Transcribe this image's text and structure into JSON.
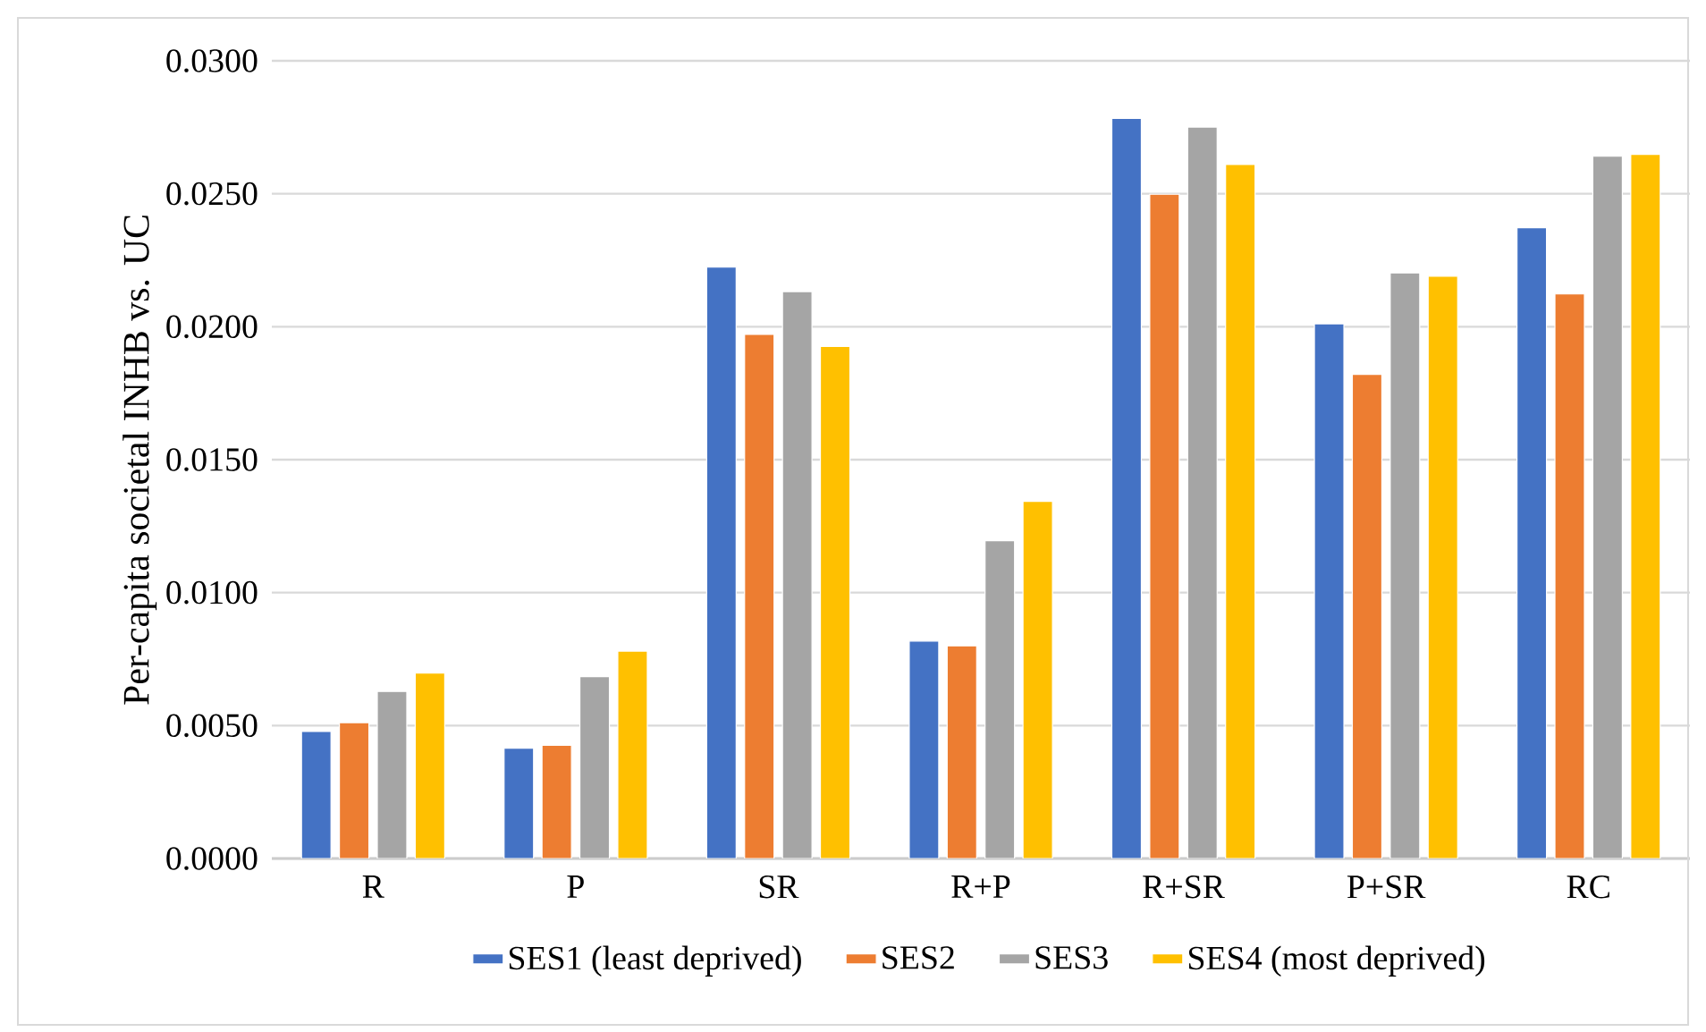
{
  "chart_data": {
    "type": "bar",
    "ylabel": "Per-capita societal INHB vs. UC",
    "categories": [
      "R",
      "P",
      "SR",
      "R+P",
      "R+SR",
      "P+SR",
      "RC"
    ],
    "series": [
      {
        "name": "SES1 (least deprived)",
        "color": "#4472c4",
        "values": [
          0.00478,
          0.00415,
          0.02224,
          0.00818,
          0.02783,
          0.02011,
          0.02372
        ]
      },
      {
        "name": "SES2",
        "color": "#ed7d31",
        "values": [
          0.00511,
          0.00426,
          0.01971,
          0.008,
          0.02498,
          0.01821,
          0.02123
        ]
      },
      {
        "name": "SES3",
        "color": "#a5a5a5",
        "values": [
          0.00628,
          0.00684,
          0.02132,
          0.01195,
          0.02751,
          0.02202,
          0.02641
        ]
      },
      {
        "name": "SES4 (most deprived)",
        "color": "#ffc000",
        "values": [
          0.00697,
          0.0078,
          0.01926,
          0.01343,
          0.0261,
          0.0219,
          0.02648
        ]
      }
    ],
    "ylim": [
      0,
      0.03
    ],
    "yticks": [
      {
        "value": 0,
        "label": "0.0000"
      },
      {
        "value": 0.005,
        "label": "0.0050"
      },
      {
        "value": 0.01,
        "label": "0.0100"
      },
      {
        "value": 0.015,
        "label": "0.0150"
      },
      {
        "value": 0.02,
        "label": "0.0200"
      },
      {
        "value": 0.025,
        "label": "0.0250"
      },
      {
        "value": 0.03,
        "label": "0.0300"
      }
    ],
    "grid": "y",
    "legend": "bottom"
  }
}
